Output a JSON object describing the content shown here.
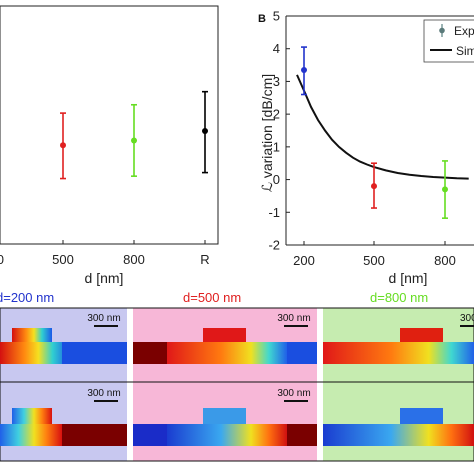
{
  "chart_data": [
    {
      "type": "scatter",
      "panel": "left",
      "xlabel": "d [nm]",
      "x_tick_labels": [
        "0",
        "500",
        "800",
        "R"
      ],
      "points": [
        {
          "x": "500",
          "y": 0.83,
          "err_low": 0.55,
          "err_high": 1.1,
          "color": "#e02020"
        },
        {
          "x": "800",
          "y": 0.87,
          "err_low": 0.57,
          "err_high": 1.17,
          "color": "#66dd22"
        },
        {
          "x": "R",
          "y": 0.95,
          "err_low": 0.6,
          "err_high": 1.28,
          "color": "#000000"
        }
      ],
      "grid": false
    },
    {
      "type": "scatter",
      "panel": "B",
      "panel_label": "B",
      "xlabel": "d [nm]",
      "ylabel": "ℒ variation [dB/cm]",
      "x_tick_labels": [
        "200",
        "500",
        "800"
      ],
      "ylim": [
        -2,
        5
      ],
      "y_ticks": [
        -2,
        -1,
        0,
        1,
        2,
        3,
        4,
        5
      ],
      "points": [
        {
          "x": 200,
          "y": 3.35,
          "err_low": 2.6,
          "err_high": 4.05,
          "color": "#2233cc"
        },
        {
          "x": 500,
          "y": -0.2,
          "err_low": -0.87,
          "err_high": 0.5,
          "color": "#e02020"
        },
        {
          "x": 800,
          "y": -0.3,
          "err_low": -1.18,
          "err_high": 0.57,
          "color": "#66dd22"
        }
      ],
      "sim_curve": {
        "name": "Sim",
        "x": [
          170,
          200,
          230,
          260,
          290,
          320,
          350,
          380,
          410,
          440,
          470,
          500,
          550,
          600,
          650,
          700,
          750,
          800,
          850,
          900
        ],
        "y": [
          3.2,
          2.72,
          2.22,
          1.82,
          1.5,
          1.22,
          1.0,
          0.82,
          0.67,
          0.55,
          0.46,
          0.38,
          0.28,
          0.2,
          0.15,
          0.11,
          0.08,
          0.06,
          0.04,
          0.03
        ]
      },
      "legend": {
        "placement": "top-right",
        "entries": [
          "Exp",
          "Sim"
        ]
      },
      "grid": false
    }
  ],
  "panels": {
    "labels": [
      "d=200 nm",
      "d=500 nm",
      "d=800 nm"
    ],
    "label_colors": [
      "#2233cc",
      "#e02020",
      "#66dd22"
    ],
    "backgrounds": [
      "#c8c8f0",
      "#f7b7d7",
      "#c6ecb0"
    ],
    "scale_labels": [
      "300 nm",
      "300 nm",
      "300 nm",
      "300 nm",
      "300"
    ]
  }
}
